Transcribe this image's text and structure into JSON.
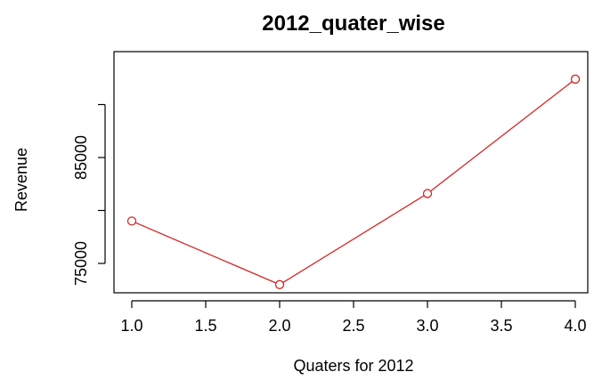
{
  "chart_data": {
    "type": "line",
    "title": "2012_quater_wise",
    "xlabel": "Quaters for 2012",
    "ylabel": "Revenue",
    "x": [
      1,
      2,
      3,
      4
    ],
    "series": [
      {
        "values": [
          79000,
          73000,
          81600,
          92400
        ]
      }
    ],
    "xlim": [
      1,
      4
    ],
    "ylim": [
      72000,
      94000
    ],
    "x_ticks": [
      "1.0",
      "1.5",
      "2.0",
      "2.5",
      "3.0",
      "3.5",
      "4.0"
    ],
    "x_tick_values": [
      1.0,
      1.5,
      2.0,
      2.5,
      3.0,
      3.5,
      4.0
    ],
    "y_ticks": [
      75000,
      80000,
      85000,
      90000
    ],
    "y_tick_labels": [
      "75000",
      "",
      "85000",
      ""
    ],
    "series_color": "#d62728",
    "grid": false,
    "marker": "open-circle"
  }
}
